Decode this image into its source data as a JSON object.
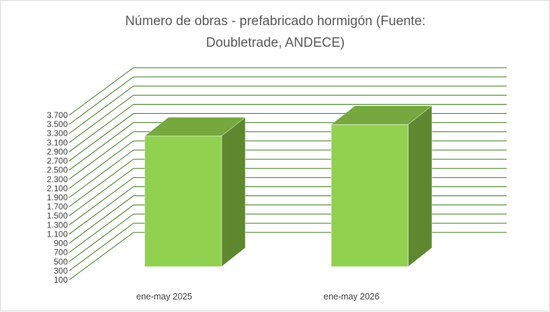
{
  "chart_data": {
    "type": "bar",
    "title_lines": [
      "Número de obras - prefabricado hormigón (Fuente:",
      "Doubletrade, ANDECE)"
    ],
    "categories": [
      "ene-may 2025",
      "ene-may 2026"
    ],
    "values": [
      3140,
      3410
    ],
    "y_ticks": [
      "100",
      "300",
      "500",
      "700",
      "900",
      "1.100",
      "1.300",
      "1.500",
      "1.700",
      "1.900",
      "2.100",
      "2.300",
      "2.500",
      "2.700",
      "2.900",
      "3.100",
      "3.300",
      "3.500",
      "3.700"
    ],
    "ylim": [
      100,
      3700
    ],
    "grid": true,
    "legend": "none",
    "colors": {
      "front": "#92d050",
      "top": "#75a83f",
      "side": "#5e8830",
      "grid": "#3e7b1e"
    }
  }
}
